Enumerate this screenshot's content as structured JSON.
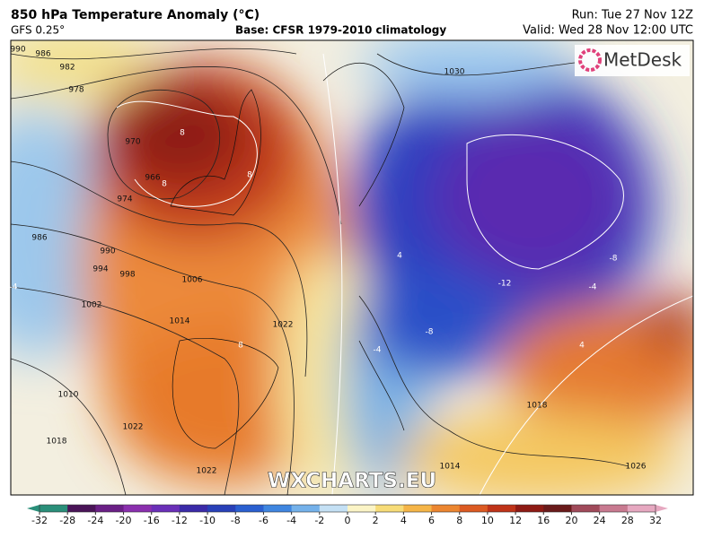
{
  "header": {
    "title": "850 hPa Temperature Anomaly (°C)",
    "model": "GFS 0.25°",
    "base": "Base: CFSR 1979-2010 climatology",
    "run": "Run: Tue 27 Nov 12Z",
    "valid": "Valid: Wed 28 Nov 12:00 UTC"
  },
  "logo": "MetDesk",
  "watermark": "WXCHARTS.EU",
  "isobar_labels": [
    "990",
    "986",
    "982",
    "978",
    "970",
    "966",
    "974",
    "986",
    "990",
    "994",
    "998",
    "1002",
    "1006",
    "1014",
    "1010",
    "1018",
    "1022",
    "1022",
    "1022",
    "1030",
    "1014",
    "1018",
    "1026"
  ],
  "anomaly_labels": [
    "8",
    "8",
    "8",
    "8",
    "-8",
    "-12",
    "-8",
    "-4",
    "-4",
    "4",
    "-4",
    "4"
  ],
  "colorbar": {
    "ticks": [
      -32,
      -28,
      -24,
      -20,
      -16,
      -12,
      -10,
      -8,
      -6,
      -4,
      -2,
      0,
      2,
      4,
      6,
      8,
      10,
      12,
      16,
      20,
      24,
      28,
      32
    ],
    "colors": [
      "#2a8f7a",
      "#4a1458",
      "#6a1f86",
      "#8a2fae",
      "#6a2fb8",
      "#3a2aa8",
      "#2840b8",
      "#2a5fd0",
      "#3f86e0",
      "#74b1ea",
      "#c4e0f4",
      "#fbf4c6",
      "#f7dc78",
      "#f5b548",
      "#ec8630",
      "#dc5a22",
      "#bf3318",
      "#8e1a14",
      "#6a1a1a",
      "#a04a5a",
      "#c87a90",
      "#e6a8c0"
    ]
  }
}
